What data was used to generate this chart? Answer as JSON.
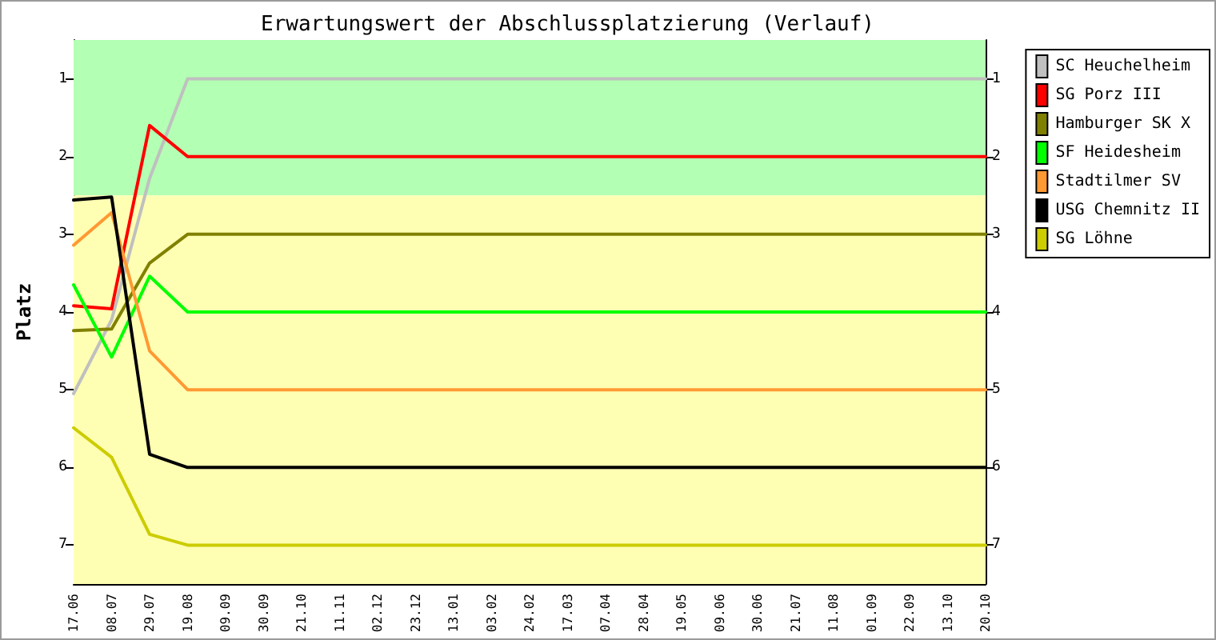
{
  "chart_data": {
    "type": "line",
    "title": "Erwartungswert der Abschlussplatzierung (Verlauf)",
    "ylabel": "Platz",
    "categories": [
      "17.06",
      "08.07",
      "29.07",
      "19.08",
      "09.09",
      "30.09",
      "21.10",
      "11.11",
      "02.12",
      "23.12",
      "13.01",
      "03.02",
      "24.02",
      "17.03",
      "07.04",
      "28.04",
      "19.05",
      "09.06",
      "30.06",
      "21.07",
      "11.08",
      "01.09",
      "22.09",
      "13.10",
      "20.10"
    ],
    "series": [
      {
        "name": "SC Heuchelheim",
        "color": "#c0c0c0",
        "values": [
          5.05,
          4.1,
          2.28,
          1,
          1,
          1,
          1,
          1,
          1,
          1,
          1,
          1,
          1,
          1,
          1,
          1,
          1,
          1,
          1,
          1,
          1,
          1,
          1,
          1,
          1
        ]
      },
      {
        "name": "SG Porz III",
        "color": "#ff0000",
        "values": [
          3.92,
          3.96,
          1.6,
          2,
          2,
          2,
          2,
          2,
          2,
          2,
          2,
          2,
          2,
          2,
          2,
          2,
          2,
          2,
          2,
          2,
          2,
          2,
          2,
          2,
          2
        ]
      },
      {
        "name": "Hamburger SK X",
        "color": "#808000",
        "values": [
          4.24,
          4.22,
          3.37,
          3,
          3,
          3,
          3,
          3,
          3,
          3,
          3,
          3,
          3,
          3,
          3,
          3,
          3,
          3,
          3,
          3,
          3,
          3,
          3,
          3,
          3
        ]
      },
      {
        "name": "SF Heidesheim",
        "color": "#00ff00",
        "values": [
          3.65,
          4.58,
          3.54,
          4,
          4,
          4,
          4,
          4,
          4,
          4,
          4,
          4,
          4,
          4,
          4,
          4,
          4,
          4,
          4,
          4,
          4,
          4,
          4,
          4,
          4
        ]
      },
      {
        "name": "Stadtilmer SV",
        "color": "#ff9933",
        "values": [
          3.14,
          2.72,
          4.5,
          5,
          5,
          5,
          5,
          5,
          5,
          5,
          5,
          5,
          5,
          5,
          5,
          5,
          5,
          5,
          5,
          5,
          5,
          5,
          5,
          5,
          5
        ]
      },
      {
        "name": "USG Chemnitz II",
        "color": "#000000",
        "values": [
          2.56,
          2.52,
          5.83,
          6,
          6,
          6,
          6,
          6,
          6,
          6,
          6,
          6,
          6,
          6,
          6,
          6,
          6,
          6,
          6,
          6,
          6,
          6,
          6,
          6,
          6
        ]
      },
      {
        "name": "SG Löhne",
        "color": "#cccc00",
        "values": [
          5.49,
          5.87,
          6.86,
          7,
          7,
          7,
          7,
          7,
          7,
          7,
          7,
          7,
          7,
          7,
          7,
          7,
          7,
          7,
          7,
          7,
          7,
          7,
          7,
          7,
          7
        ]
      }
    ],
    "ylim": [
      7.5,
      0.5
    ],
    "yticks": [
      1,
      2,
      3,
      4,
      5,
      6,
      7
    ],
    "y2lim": [
      7.5,
      0.5
    ],
    "y2ticks": [
      1,
      2,
      3,
      4,
      5,
      6,
      7
    ],
    "bands": [
      {
        "axis": "y",
        "from": 0.5,
        "to": 2.5,
        "color": "#b3ffb3"
      },
      {
        "axis": "y",
        "from": 2.5,
        "to": 7.5,
        "color": "#ffffb3"
      }
    ],
    "grid": false,
    "legend": "top right",
    "marker": "none",
    "line_style": "solid"
  }
}
